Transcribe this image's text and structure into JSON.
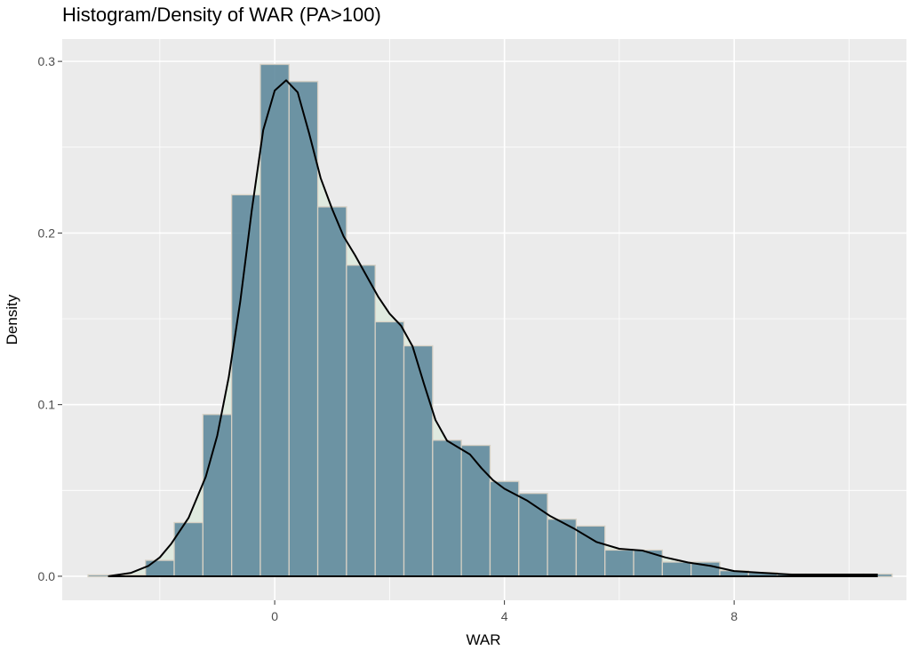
{
  "chart_data": {
    "type": "bar",
    "title": "Histogram/Density of WAR (PA>100)",
    "xlabel": "WAR",
    "ylabel": "Density",
    "xlim": [
      -3.7,
      11.0
    ],
    "ylim": [
      -0.014,
      0.313
    ],
    "x_ticks": [
      0,
      4,
      8
    ],
    "x_tick_labels": [
      "0",
      "4",
      "8"
    ],
    "y_ticks": [
      0.0,
      0.1,
      0.2,
      0.3
    ],
    "y_tick_labels": [
      "0.0",
      "0.1",
      "0.2",
      "0.3"
    ],
    "grid": true,
    "bin_width": 0.5,
    "series": [
      {
        "type": "histogram",
        "bin_centers": [
          -3.0,
          -2.5,
          -2.0,
          -1.5,
          -1.0,
          -0.5,
          0.0,
          0.5,
          1.0,
          1.5,
          2.0,
          2.5,
          3.0,
          3.5,
          4.0,
          4.5,
          5.0,
          5.5,
          6.0,
          6.5,
          7.0,
          7.5,
          8.0,
          8.5,
          9.0,
          9.5,
          10.0,
          10.5
        ],
        "values": [
          0.0005,
          0.0005,
          0.009,
          0.031,
          0.094,
          0.222,
          0.298,
          0.288,
          0.215,
          0.181,
          0.148,
          0.134,
          0.079,
          0.076,
          0.055,
          0.048,
          0.033,
          0.029,
          0.015,
          0.015,
          0.008,
          0.008,
          0.003,
          0.002,
          0.001,
          0.001,
          0.001,
          0.001
        ]
      },
      {
        "type": "density",
        "x": [
          -2.9,
          -2.5,
          -2.2,
          -2.0,
          -1.8,
          -1.5,
          -1.2,
          -1.0,
          -0.8,
          -0.6,
          -0.4,
          -0.2,
          0.0,
          0.2,
          0.4,
          0.6,
          0.8,
          1.0,
          1.2,
          1.4,
          1.6,
          1.8,
          2.0,
          2.2,
          2.4,
          2.6,
          2.8,
          3.0,
          3.2,
          3.4,
          3.6,
          3.8,
          4.0,
          4.4,
          4.8,
          5.2,
          5.6,
          6.0,
          6.4,
          6.8,
          7.2,
          7.6,
          8.0,
          8.5,
          9.0,
          9.5,
          10.0,
          10.5
        ],
        "y": [
          0.0,
          0.002,
          0.006,
          0.011,
          0.019,
          0.034,
          0.058,
          0.082,
          0.116,
          0.16,
          0.213,
          0.26,
          0.283,
          0.289,
          0.282,
          0.258,
          0.232,
          0.214,
          0.198,
          0.187,
          0.175,
          0.163,
          0.153,
          0.146,
          0.134,
          0.112,
          0.091,
          0.079,
          0.075,
          0.071,
          0.063,
          0.056,
          0.051,
          0.044,
          0.035,
          0.028,
          0.02,
          0.016,
          0.015,
          0.011,
          0.008,
          0.006,
          0.003,
          0.002,
          0.001,
          0.001,
          0.001,
          0.001
        ]
      }
    ],
    "colors": {
      "panel": "#ebebeb",
      "grid": "#ffffff",
      "bar_fill": "#5f8a9c",
      "bar_border": "#d6d0c4",
      "density_fill": "#dfeadf",
      "density_line": "#000000",
      "tick_text": "#4d4d4d"
    }
  }
}
